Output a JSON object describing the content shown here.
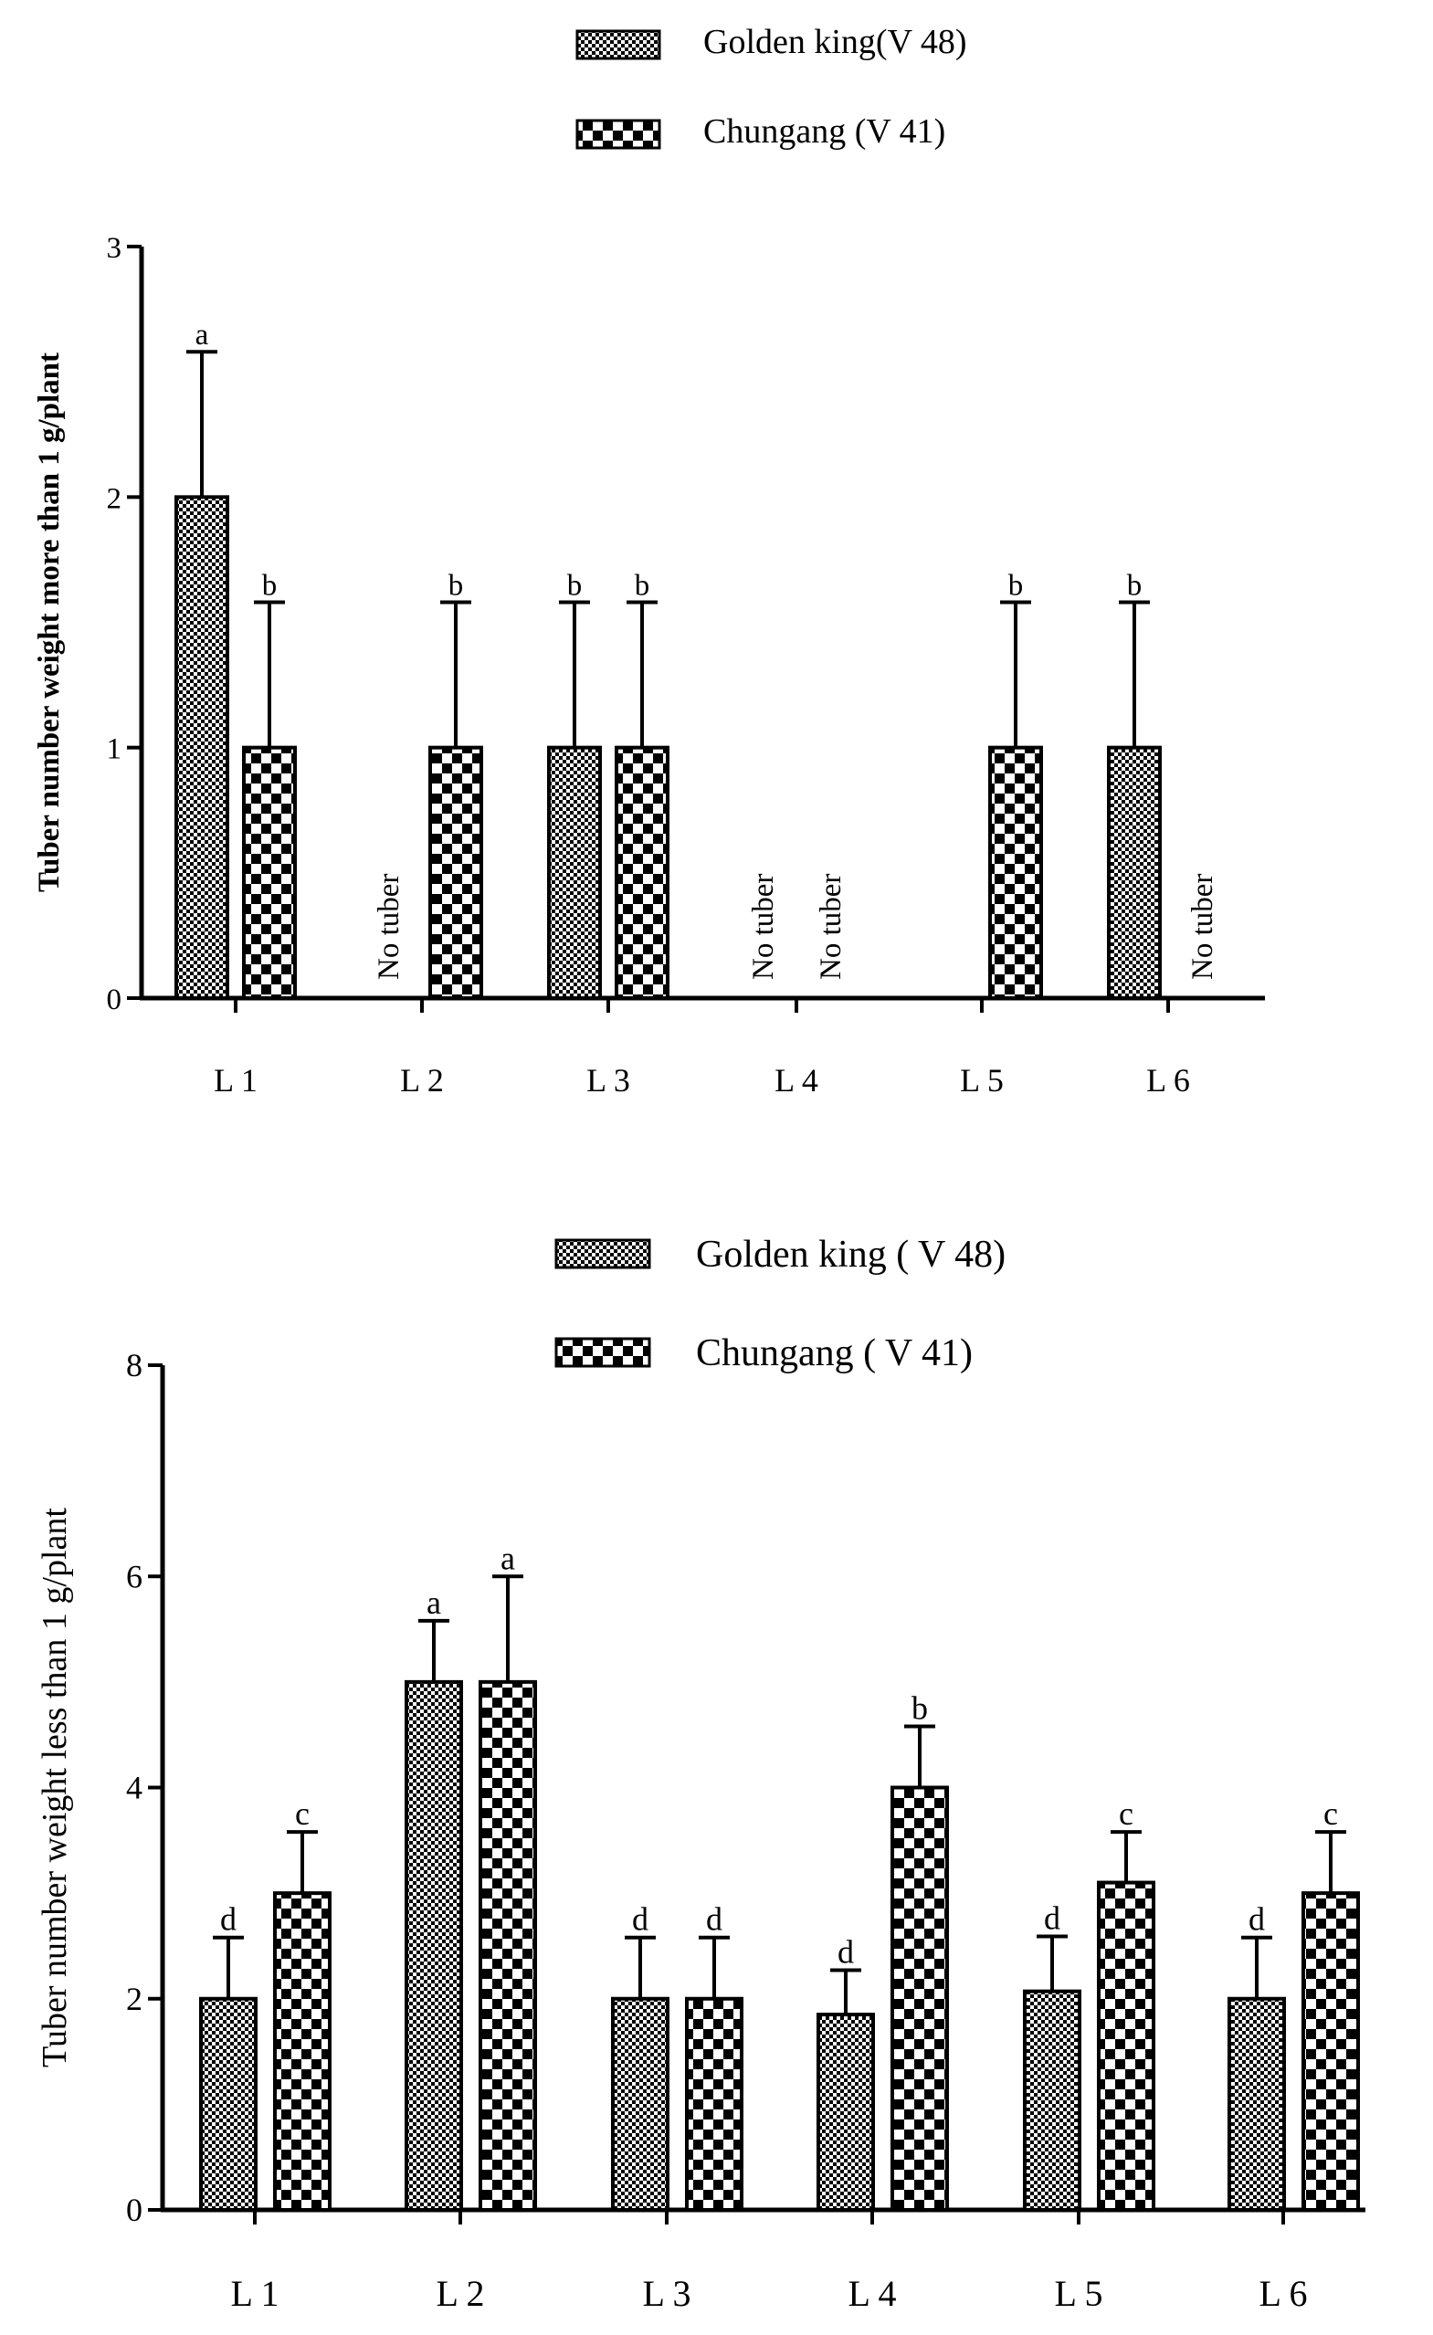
{
  "colors": {
    "ink": "#000000",
    "paper": "#ffffff"
  },
  "chart_data": [
    {
      "type": "bar",
      "title": "",
      "xlabel": "",
      "ylabel": "Tuber number weight more than 1 g/plant",
      "ylabel_bold": true,
      "ylim": [
        0,
        3
      ],
      "yticks": [
        0,
        1,
        2,
        3
      ],
      "categories": [
        "L 1",
        "L 2",
        "L 3",
        "L 4",
        "L 5",
        "L 6"
      ],
      "legend": [
        "Golden king(V 48)",
        "Chungang (V 41)"
      ],
      "series": [
        {
          "name": "Golden king(V 48)",
          "pattern": "fine",
          "values": [
            2,
            0,
            1,
            0,
            0,
            1
          ],
          "errors": [
            0.58,
            0,
            0.58,
            0,
            0,
            0.58
          ],
          "letters": [
            "a",
            "",
            "b",
            "",
            "",
            "b"
          ],
          "notes": [
            "",
            "No tuber",
            "",
            "No tuber",
            "",
            ""
          ]
        },
        {
          "name": "Chungang (V 41)",
          "pattern": "coarse",
          "values": [
            1,
            1,
            1,
            0,
            1,
            0
          ],
          "errors": [
            0.58,
            0.58,
            0.58,
            0,
            0.58,
            0
          ],
          "letters": [
            "b",
            "b",
            "b",
            "",
            "b",
            ""
          ],
          "notes": [
            "",
            "",
            "",
            "No tuber",
            "",
            "No tuber"
          ]
        }
      ]
    },
    {
      "type": "bar",
      "title": "",
      "xlabel": "",
      "ylabel": "Tuber number weight less than 1 g/plant",
      "ylabel_bold": false,
      "ylim": [
        0,
        8
      ],
      "yticks": [
        0,
        2,
        4,
        6,
        8
      ],
      "categories": [
        "L 1",
        "L 2",
        "L 3",
        "L 4",
        "L 5",
        "L 6"
      ],
      "legend": [
        "Golden king ( V 48)",
        "Chungang ( V 41)"
      ],
      "series": [
        {
          "name": "Golden king ( V 48)",
          "pattern": "fine",
          "values": [
            2,
            5,
            2,
            1.85,
            2.07,
            2
          ],
          "errors": [
            0.58,
            0.58,
            0.58,
            0.42,
            0.52,
            0.58
          ],
          "letters": [
            "d",
            "a",
            "d",
            "d",
            "d",
            "d"
          ],
          "notes": [
            "",
            "",
            "",
            "",
            "",
            ""
          ]
        },
        {
          "name": "Chungang ( V 41)",
          "pattern": "coarse",
          "values": [
            3,
            5,
            2,
            4,
            3.1,
            3
          ],
          "errors": [
            0.58,
            1,
            0.58,
            0.58,
            0.48,
            0.58
          ],
          "letters": [
            "c",
            "a",
            "d",
            "b",
            "c",
            "c"
          ],
          "notes": [
            "",
            "",
            "",
            "",
            "",
            ""
          ]
        }
      ]
    }
  ]
}
